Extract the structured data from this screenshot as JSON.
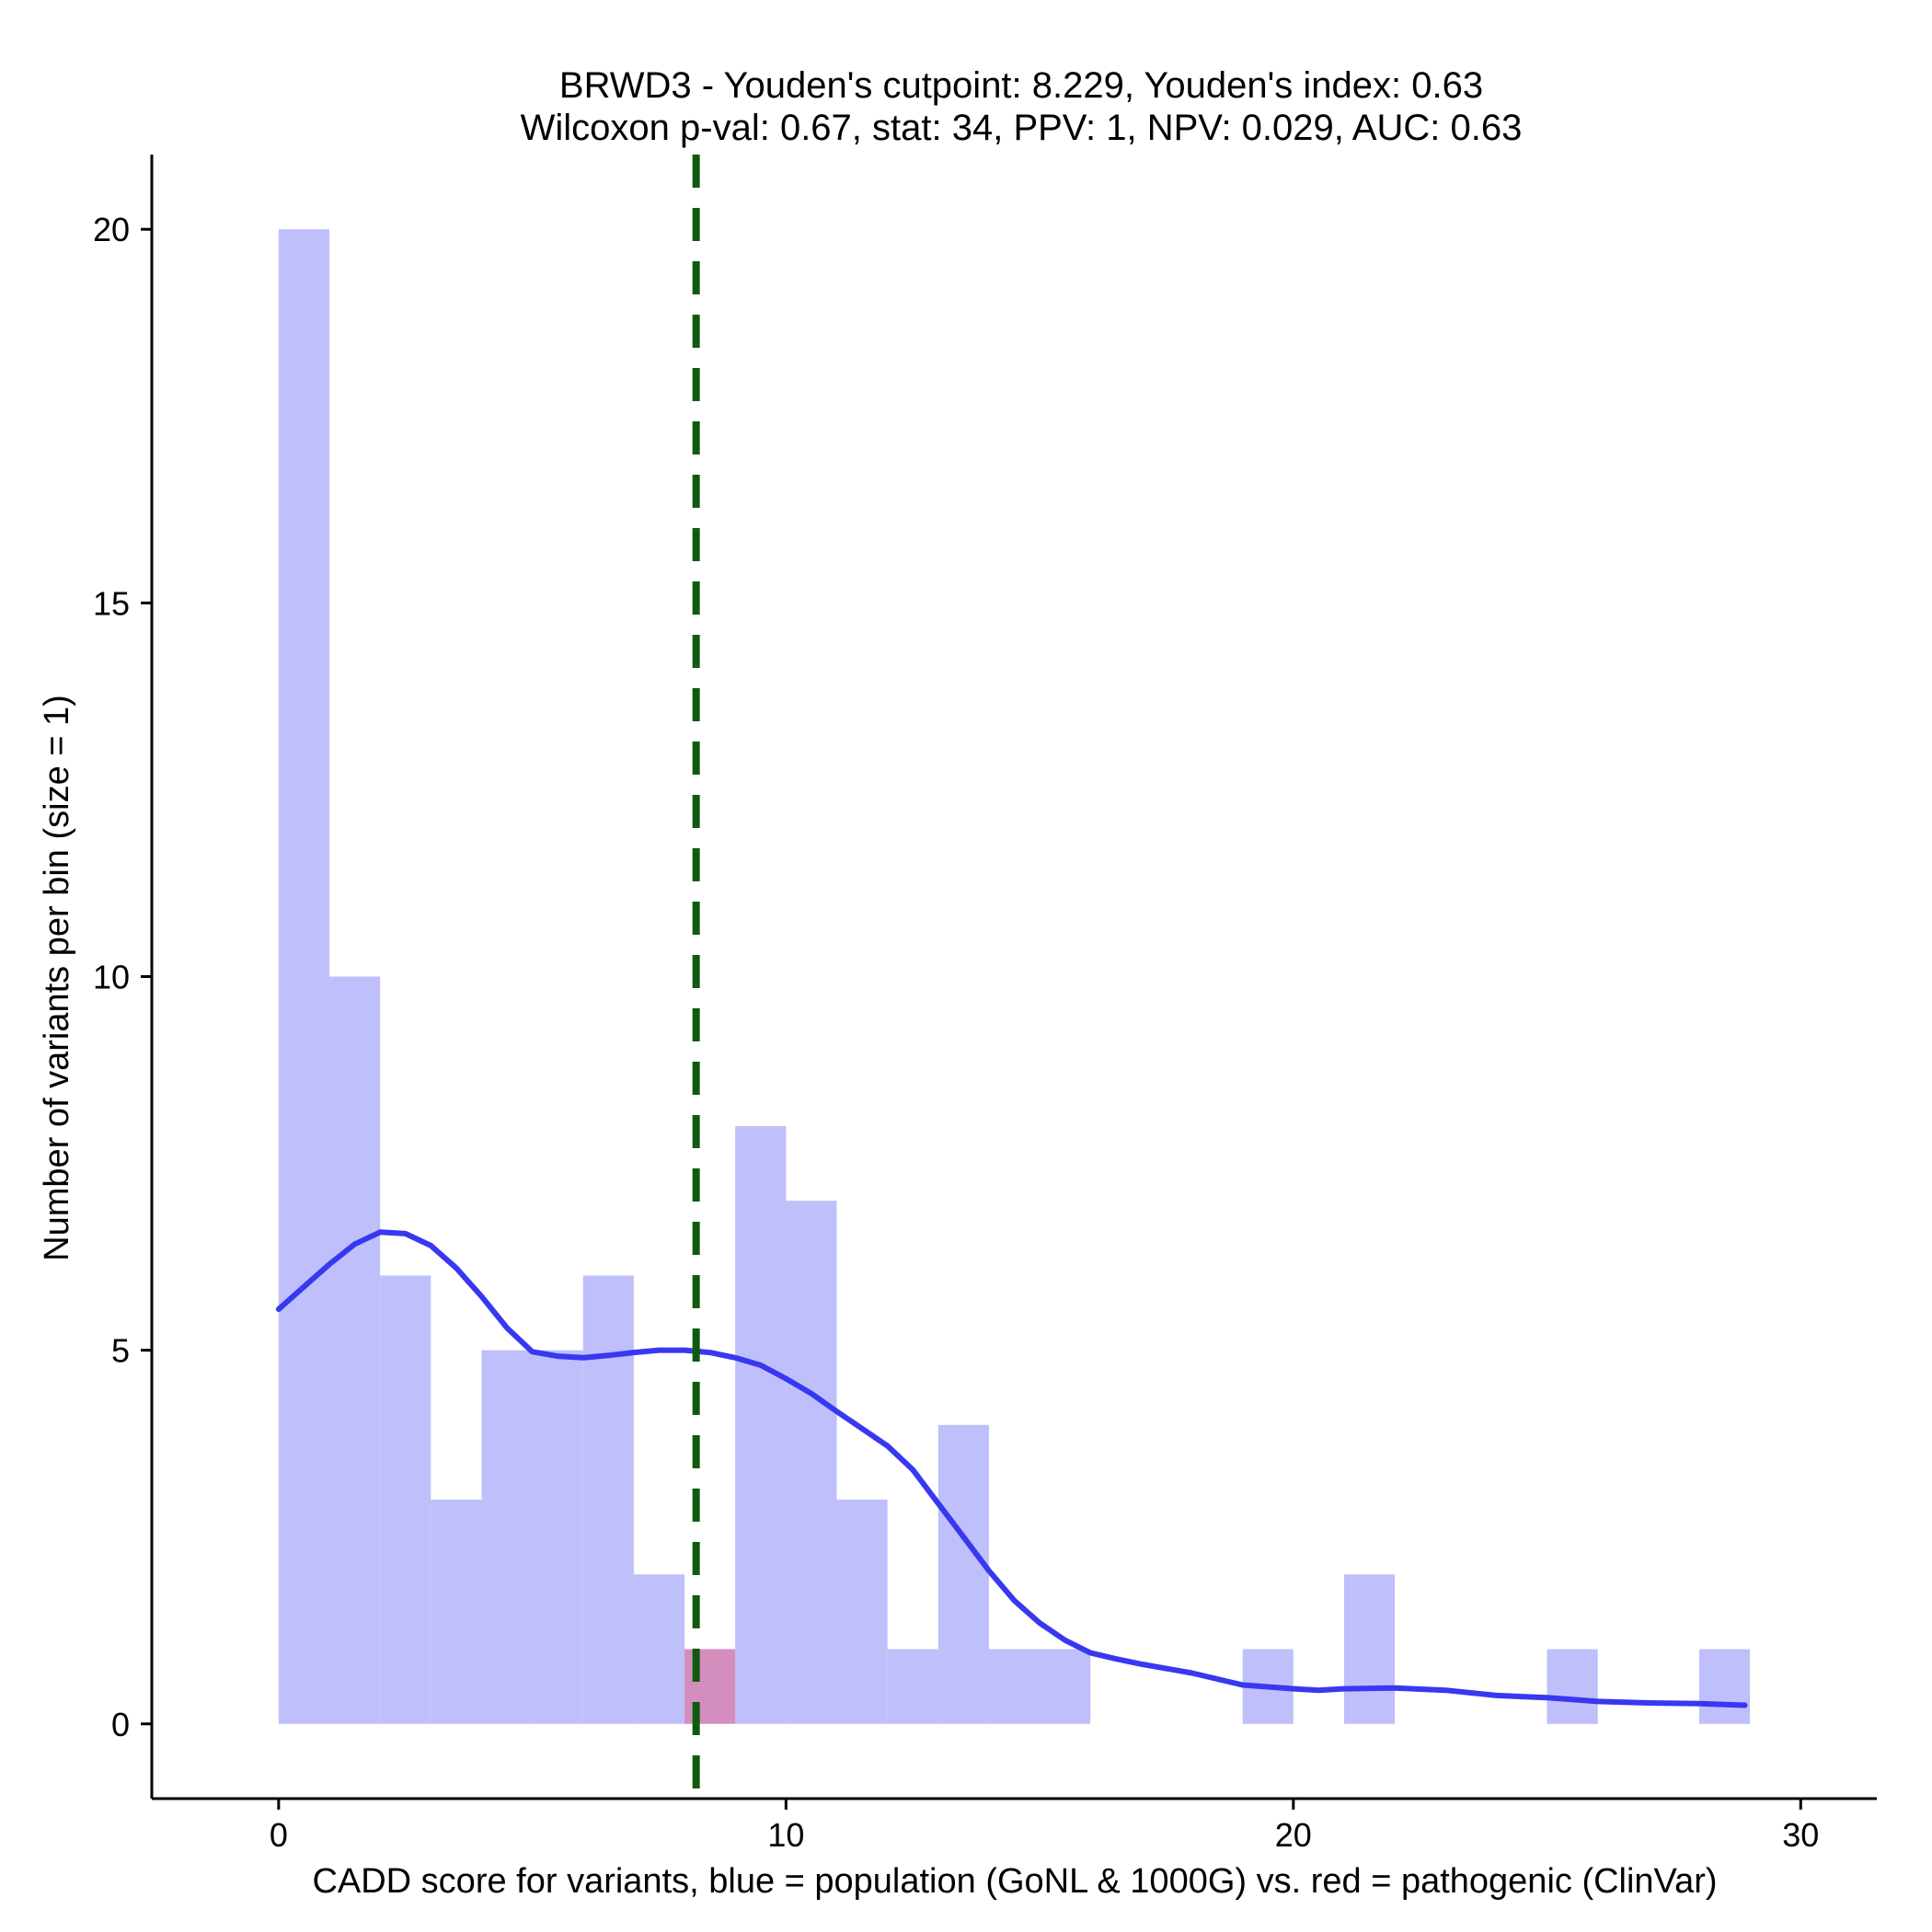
{
  "chart_data": {
    "type": "bar",
    "title_line1": "BRWD3 - Youden's cutpoint: 8.229, Youden's index: 0.63",
    "title_line2": "Wilcoxon p-val: 0.67, stat: 34, PPV: 1, NPV: 0.029, AUC: 0.63",
    "xlabel": "CADD score for variants, blue = population (GoNL & 1000G) vs. red = pathogenic (ClinVar)",
    "ylabel": "Number of variants per bin (size = 1)",
    "xlim": [
      -2.5,
      31.5
    ],
    "ylim": [
      -1,
      21
    ],
    "x_ticks": [
      0,
      10,
      20,
      30
    ],
    "x_tick_labels": [
      "0",
      "10",
      "20",
      "30"
    ],
    "y_ticks": [
      0,
      5,
      10,
      15,
      20
    ],
    "y_tick_labels": [
      "0",
      "5",
      "10",
      "15",
      "20"
    ],
    "bin_width": 1,
    "series": [
      {
        "name": "population (GoNL & 1000G)",
        "color": "#bfbffb",
        "bins": [
          {
            "start": 0,
            "count": 20
          },
          {
            "start": 1,
            "count": 10
          },
          {
            "start": 2,
            "count": 6
          },
          {
            "start": 3,
            "count": 3
          },
          {
            "start": 4,
            "count": 5
          },
          {
            "start": 5,
            "count": 5
          },
          {
            "start": 6,
            "count": 6
          },
          {
            "start": 7,
            "count": 2
          },
          {
            "start": 8,
            "count": 0
          },
          {
            "start": 9,
            "count": 8
          },
          {
            "start": 10,
            "count": 7
          },
          {
            "start": 11,
            "count": 3
          },
          {
            "start": 12,
            "count": 1
          },
          {
            "start": 13,
            "count": 4
          },
          {
            "start": 14,
            "count": 1
          },
          {
            "start": 15,
            "count": 1
          },
          {
            "start": 19,
            "count": 1
          },
          {
            "start": 21,
            "count": 2
          },
          {
            "start": 25,
            "count": 1
          },
          {
            "start": 28,
            "count": 1
          }
        ]
      },
      {
        "name": "pathogenic (ClinVar)",
        "color": "#d48ebe",
        "bins": [
          {
            "start": 8,
            "count": 1
          }
        ]
      }
    ],
    "density_curve": {
      "name": "population density (scaled)",
      "color": "#3838f0",
      "x": [
        0,
        0.5,
        1,
        1.5,
        2,
        2.5,
        3,
        3.5,
        4,
        4.5,
        5,
        5.5,
        6,
        6.5,
        7,
        7.5,
        8,
        8.5,
        9,
        9.5,
        10,
        10.5,
        11,
        11.5,
        12,
        12.5,
        13,
        13.5,
        14,
        14.5,
        15,
        15.5,
        16,
        16.5,
        17,
        18,
        19,
        20,
        20.5,
        21,
        22,
        23,
        24,
        25,
        26,
        27,
        28,
        28.9
      ],
      "y": [
        5.55,
        5.85,
        6.15,
        6.42,
        6.58,
        6.56,
        6.4,
        6.1,
        5.72,
        5.3,
        4.98,
        4.92,
        4.9,
        4.93,
        4.97,
        5.0,
        5.0,
        4.97,
        4.9,
        4.8,
        4.62,
        4.42,
        4.18,
        3.95,
        3.72,
        3.4,
        2.95,
        2.5,
        2.05,
        1.65,
        1.35,
        1.12,
        0.95,
        0.87,
        0.8,
        0.68,
        0.52,
        0.47,
        0.45,
        0.47,
        0.48,
        0.45,
        0.38,
        0.35,
        0.3,
        0.28,
        0.27,
        0.25
      ]
    },
    "cutpoint": {
      "value": 8.229,
      "color": "#0f5a0f",
      "style": "dashed"
    }
  }
}
